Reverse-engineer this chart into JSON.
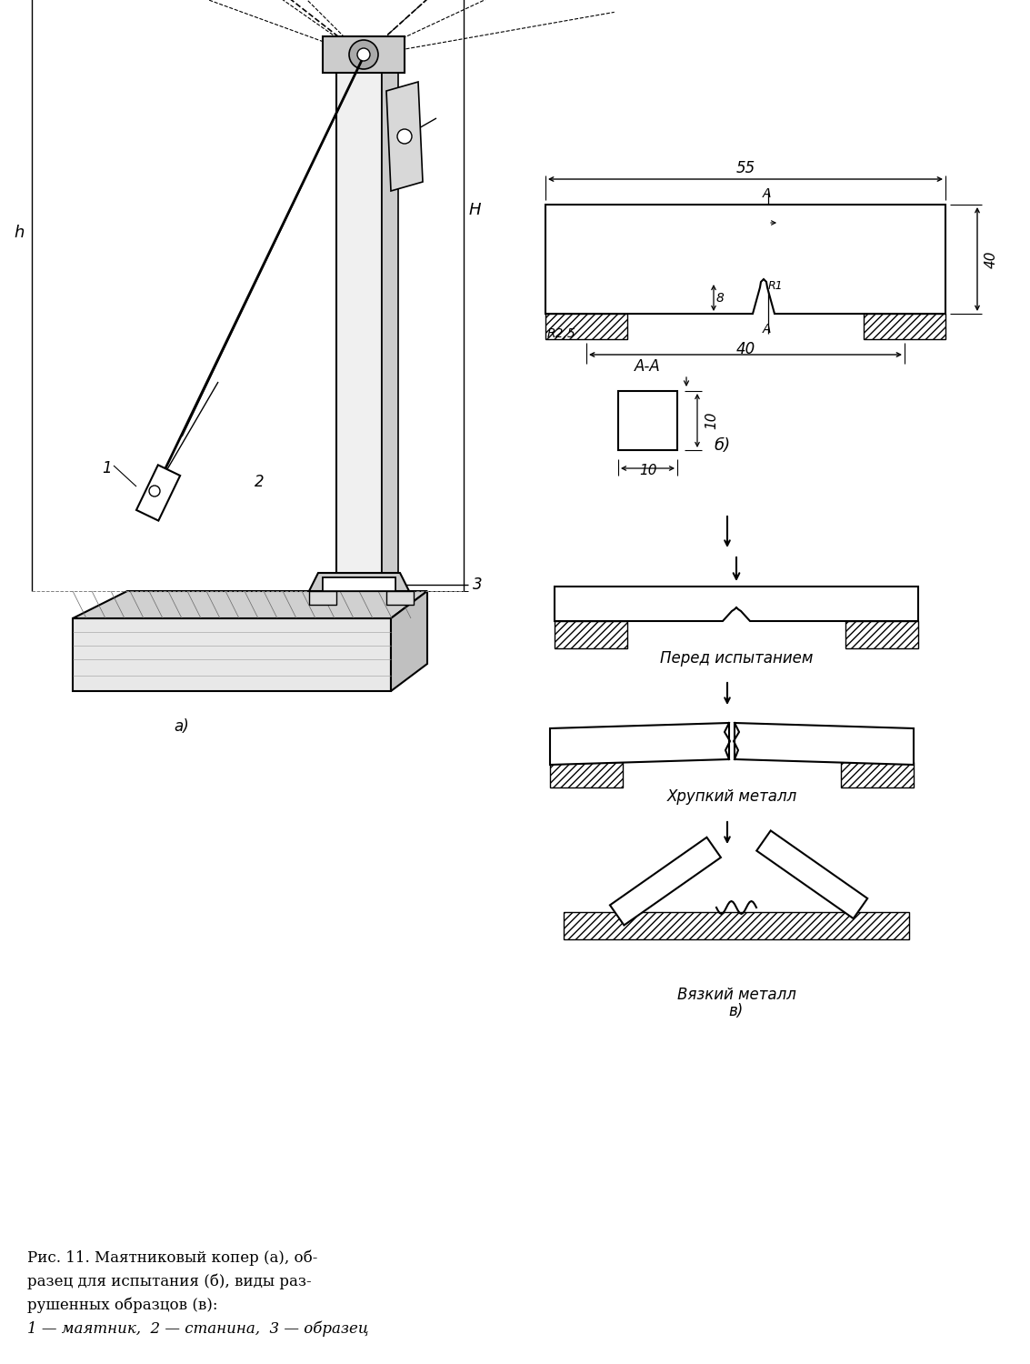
{
  "bg_color": "#ffffff",
  "caption_line1": "Рис. 11. Маятниковый копер (а), об-",
  "caption_line2": "разец для испытания (б), виды раз-",
  "caption_line3": "рушенных образцов (в):",
  "caption_line4": "1 — маятник,  2 — станина,  3 — образец",
  "label_a": "а)",
  "label_b": "б)",
  "label_v": "в)",
  "label_H": "H",
  "label_h": "h",
  "label_1": "1",
  "label_2": "2",
  "label_3": "3",
  "label_55": "55",
  "label_40_height": "40",
  "label_40_span": "40",
  "label_8": "8",
  "label_10_h": "10",
  "label_10_v": "10",
  "label_R25": "R2,5",
  "label_R1": "R1",
  "label_A_top": "A",
  "label_A_bot": "A",
  "label_AA": "A-A",
  "text_before": "Перед испытанием",
  "text_brittle": "Хрупкий металл",
  "text_ductile": "Вязкий металл"
}
